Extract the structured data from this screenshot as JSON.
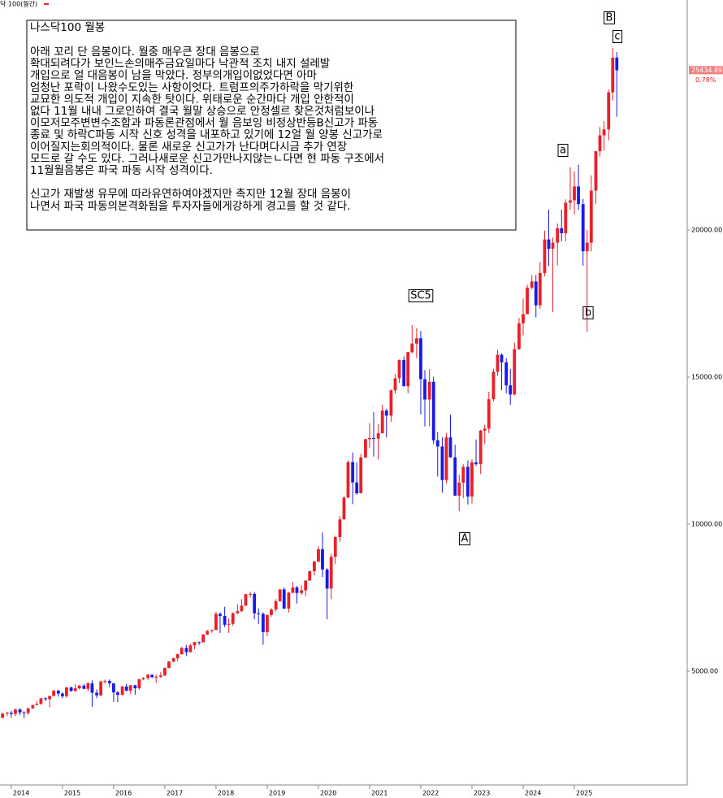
{
  "chart_data": {
    "type": "candlestick",
    "legend_text": "닥 100(월간)",
    "note": {
      "title": "나스닥100 월봉",
      "paragraphs": [
        [
          "아래 꼬리 단 음봉이다. 월중 매우큰 장대 음봉으로",
          "확대되려다가 보인느손의매주금요일마다 낙관적 조치 내지 설레발",
          "개입으로 얼 대음봉이 남을 막았다. 정부의개입이없었다면 아마",
          "엄청난 포락이 나왔수도있는 사항이엇다. 트럼프의주가하락을 막기위한",
          "교묘한 의도적 개입이 지속한 탓이다. 위태로운 순간마다 개입 안한적이",
          "없다 11월 내내 그로인하여 결국 월말 상승으로 안정셀르 찾은것처럼보이나",
          "이모저모주변변수조합과 파동론관점에서 월 음보잉 비정상반등B신고가 파동",
          "종료 및 하락C파동 시작 신호 성격을 내포하고 있기에 12얼 월 양봉 신고가로",
          "이어질지는회의적이다. 물론 새로운 신고가가 난다며다시금 추가 연장",
          "모드로 갈 수도 있다. 그러나새로운 신고가만나지않는ㄴ다면 현 파동 구조에서",
          "11월월음봉은 파국 파동 시작 성격이다."
        ],
        [
          "신고가 재발생 유무에 따라유연하여야겠지만 촉지만 12월 장대 음봉이",
          "나면서 파국 파동의본격화됨을 투자자들에게강하게 경고를 할 것 같다."
        ]
      ]
    },
    "annotations": [
      "B",
      "c",
      "a",
      "b",
      "SC5",
      "A"
    ],
    "x": [
      2013.83,
      2013.92,
      2014.0,
      2014.08,
      2014.17,
      2014.25,
      2014.33,
      2014.42,
      2014.5,
      2014.58,
      2014.67,
      2014.75,
      2014.83,
      2014.92,
      2015.0,
      2015.08,
      2015.17,
      2015.25,
      2015.33,
      2015.42,
      2015.5,
      2015.58,
      2015.67,
      2015.75,
      2015.83,
      2015.92,
      2016.0,
      2016.08,
      2016.17,
      2016.25,
      2016.33,
      2016.42,
      2016.5,
      2016.58,
      2016.67,
      2016.75,
      2016.83,
      2016.92,
      2017.0,
      2017.08,
      2017.17,
      2017.25,
      2017.33,
      2017.42,
      2017.5,
      2017.58,
      2017.67,
      2017.75,
      2017.83,
      2017.92,
      2018.0,
      2018.08,
      2018.17,
      2018.25,
      2018.33,
      2018.42,
      2018.5,
      2018.58,
      2018.67,
      2018.75,
      2018.83,
      2018.92,
      2019.0,
      2019.08,
      2019.17,
      2019.25,
      2019.33,
      2019.42,
      2019.5,
      2019.58,
      2019.67,
      2019.75,
      2019.83,
      2019.92,
      2020.0,
      2020.08,
      2020.17,
      2020.25,
      2020.33,
      2020.42,
      2020.5,
      2020.58,
      2020.67,
      2020.75,
      2020.83,
      2020.92,
      2021.0,
      2021.08,
      2021.17,
      2021.25,
      2021.33,
      2021.42,
      2021.5,
      2021.58,
      2021.67,
      2021.75,
      2021.83,
      2021.92,
      2022.0,
      2022.08,
      2022.17,
      2022.25,
      2022.33,
      2022.42,
      2022.5,
      2022.58,
      2022.67,
      2022.75,
      2022.83,
      2022.92,
      2023.0,
      2023.08,
      2023.17,
      2023.25,
      2023.33,
      2023.42,
      2023.5,
      2023.58,
      2023.67,
      2023.75,
      2023.83,
      2023.92,
      2024.0,
      2024.08,
      2024.17,
      2024.25,
      2024.33,
      2024.42,
      2024.5,
      2024.58,
      2024.67,
      2024.75,
      2024.83,
      2024.92,
      2025.0,
      2025.08,
      2025.17,
      2025.25,
      2025.33,
      2025.42,
      2025.5,
      2025.58,
      2025.67,
      2025.75,
      2025.83
    ],
    "open": [
      3420,
      3560,
      3590,
      3550,
      3700,
      3600,
      3580,
      3740,
      3850,
      3890,
      4080,
      4050,
      4160,
      4340,
      4240,
      4150,
      4450,
      4330,
      4420,
      4510,
      4400,
      4590,
      4270,
      4180,
      4650,
      4670,
      4590,
      4280,
      4200,
      4480,
      4340,
      4520,
      4420,
      4730,
      4770,
      4880,
      4800,
      4810,
      4860,
      5110,
      5330,
      5440,
      5580,
      5790,
      5650,
      5880,
      5990,
      5980,
      6250,
      6370,
      6400,
      6950,
      6880,
      6580,
      6610,
      6970,
      7040,
      7230,
      7620,
      7630,
      6970,
      6950,
      6330,
      6910,
      7100,
      7380,
      7780,
      7130,
      7670,
      7850,
      7660,
      7750,
      8080,
      8400,
      8730,
      9150,
      8460,
      7810,
      8890,
      9560,
      10160,
      10900,
      12110,
      11420,
      11050,
      12270,
      12890,
      12930,
      12910,
      13090,
      13860,
      13690,
      14550,
      14960,
      15580,
      14690,
      15850,
      16140,
      16320,
      14930,
      14240,
      14840,
      12850,
      12640,
      11500,
      12950,
      12270,
      10970,
      11410,
      11950,
      10940,
      12100,
      12040,
      13180,
      13250,
      14250,
      15180,
      15760,
      15500,
      14720,
      14410,
      15950,
      16830,
      17140,
      18040,
      18250,
      17440,
      18540,
      19680,
      19360,
      19570,
      20060,
      19890,
      20930,
      21010,
      21480,
      20880,
      19280,
      19570,
      21340,
      22680,
      23220,
      23420,
      24680,
      25860
    ],
    "high": [
      3600,
      3620,
      3650,
      3740,
      3740,
      3640,
      3760,
      3860,
      3990,
      4090,
      4120,
      4170,
      4370,
      4370,
      4290,
      4470,
      4480,
      4560,
      4540,
      4560,
      4630,
      4690,
      4380,
      4680,
      4720,
      4720,
      4590,
      4330,
      4500,
      4570,
      4530,
      4540,
      4740,
      4800,
      4910,
      4890,
      4880,
      4970,
      5130,
      5350,
      5460,
      5600,
      5830,
      5900,
      5930,
      6000,
      6010,
      6260,
      6400,
      6420,
      7020,
      7000,
      7190,
      6800,
      7000,
      7280,
      7450,
      7630,
      7700,
      7690,
      7140,
      7000,
      6950,
      7150,
      7450,
      7800,
      7850,
      7700,
      8040,
      7900,
      7920,
      8100,
      8420,
      8750,
      9250,
      9720,
      8500,
      9000,
      9600,
      10280,
      10960,
      12170,
      12440,
      12100,
      12390,
      12900,
      13440,
      13810,
      13400,
      14060,
      13920,
      14580,
      15100,
      15600,
      15700,
      15860,
      16770,
      16660,
      16570,
      15240,
      15270,
      15010,
      13130,
      12950,
      13100,
      13720,
      12700,
      11690,
      12040,
      12170,
      12210,
      12880,
      13210,
      13380,
      14500,
      15280,
      15930,
      15810,
      15640,
      15280,
      16170,
      17010,
      17670,
      18140,
      18460,
      18470,
      18910,
      19980,
      20690,
      19740,
      20220,
      20690,
      21040,
      22130,
      22000,
      22220,
      21060,
      20000,
      21860,
      22690,
      23500,
      23700,
      24780,
      26180,
      26050
    ],
    "low": [
      3400,
      3480,
      3430,
      3470,
      3510,
      3410,
      3520,
      3720,
      3850,
      3860,
      3990,
      3780,
      4150,
      4140,
      4080,
      4100,
      4300,
      4300,
      4380,
      4390,
      4320,
      3790,
      4080,
      4160,
      4580,
      4460,
      3960,
      3950,
      4180,
      4320,
      4230,
      4200,
      4380,
      4700,
      4700,
      4760,
      4600,
      4780,
      4830,
      5100,
      5300,
      5340,
      5560,
      5520,
      5640,
      5750,
      5890,
      5990,
      6230,
      6310,
      6400,
      6300,
      6500,
      6300,
      6550,
      6950,
      7010,
      7220,
      7500,
      6770,
      6600,
      5900,
      6190,
      6850,
      7030,
      7370,
      7120,
      7000,
      7650,
      7300,
      7600,
      7550,
      8080,
      8260,
      8690,
      8200,
      6770,
      7450,
      8650,
      9400,
      10200,
      10900,
      10680,
      11000,
      11060,
      12240,
      12600,
      12300,
      12200,
      13100,
      12950,
      13480,
      14430,
      14800,
      14690,
      14450,
      15800,
      15650,
      13730,
      13320,
      13330,
      12720,
      11620,
      11070,
      11390,
      12260,
      10960,
      10440,
      10880,
      10670,
      10700,
      11980,
      11700,
      12720,
      13100,
      14170,
      15050,
      14560,
      14450,
      14060,
      14380,
      15920,
      16420,
      17170,
      17980,
      17030,
      17320,
      18430,
      18770,
      17220,
      18800,
      19620,
      19620,
      20690,
      20540,
      20680,
      18790,
      16540,
      19270,
      20880,
      22500,
      22700,
      23050,
      24400,
      23850
    ],
    "close": [
      3560,
      3590,
      3550,
      3700,
      3600,
      3580,
      3740,
      3850,
      3890,
      4080,
      4050,
      4160,
      4340,
      4240,
      4150,
      4450,
      4330,
      4420,
      4510,
      4400,
      4590,
      4270,
      4180,
      4650,
      4670,
      4590,
      4280,
      4200,
      4480,
      4340,
      4520,
      4420,
      4730,
      4770,
      4880,
      4800,
      4810,
      4860,
      5110,
      5330,
      5440,
      5580,
      5790,
      5650,
      5880,
      5990,
      5980,
      6250,
      6370,
      6400,
      6950,
      6880,
      6580,
      6610,
      6970,
      7040,
      7230,
      7620,
      7630,
      6970,
      6950,
      6330,
      6910,
      7100,
      7380,
      7780,
      7130,
      7670,
      7850,
      7660,
      7750,
      8080,
      8400,
      8730,
      9150,
      8460,
      7810,
      8890,
      9560,
      10160,
      10900,
      12110,
      11420,
      11050,
      12270,
      12890,
      12930,
      12910,
      13090,
      13860,
      13690,
      14550,
      14960,
      15580,
      14690,
      15850,
      16140,
      16320,
      14930,
      14240,
      14840,
      12850,
      12640,
      11500,
      12950,
      12270,
      10970,
      11410,
      11950,
      10940,
      12100,
      12040,
      13180,
      13250,
      14250,
      15180,
      15760,
      15500,
      14720,
      14410,
      15950,
      16830,
      17140,
      18040,
      18250,
      17440,
      18540,
      19680,
      19360,
      19570,
      20060,
      19890,
      20930,
      21010,
      21480,
      20880,
      19280,
      19570,
      21340,
      22680,
      23220,
      23420,
      24680,
      25860,
      25434.89
    ],
    "up_color": "#e8202a",
    "down_color": "#1a1ae6",
    "last_value": 25434.89,
    "last_change": {
      "value": 0.78,
      "label": "0.78%"
    },
    "xlim": [
      2013.78,
      2027.19
    ],
    "ylim": [
      1160,
      27820
    ],
    "xticks": [
      2014,
      2015,
      2016,
      2017,
      2018,
      2019,
      2020,
      2021,
      2022,
      2023,
      2024,
      2025
    ],
    "yticks": [
      {
        "value": 5000,
        "label": "5000.00"
      },
      {
        "value": 10000,
        "label": "10000.00"
      },
      {
        "value": 15000,
        "label": "15000.00"
      },
      {
        "value": 20000,
        "label": "20000.00"
      }
    ]
  }
}
